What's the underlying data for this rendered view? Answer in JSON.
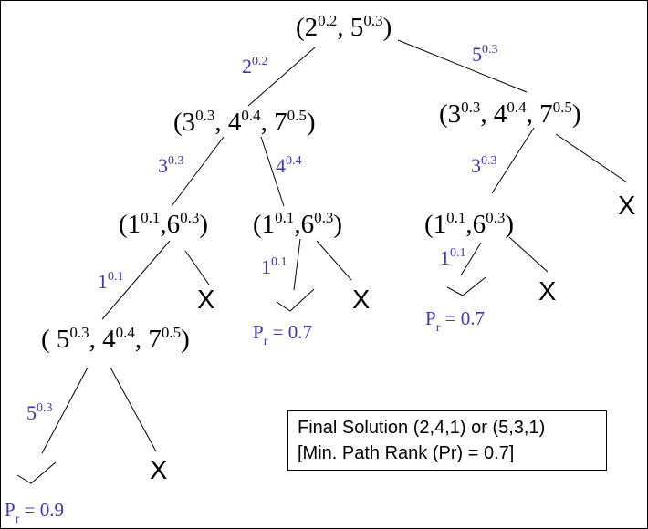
{
  "nodes": {
    "root": [
      {
        "base": "(2",
        "exp": "0.2"
      },
      {
        "base": ", 5",
        "exp": "0.3"
      },
      {
        "base": ")",
        "exp": ""
      }
    ],
    "left_l1": [
      {
        "base": "(3",
        "exp": "0.3"
      },
      {
        "base": ", 4",
        "exp": "0.4"
      },
      {
        "base": ", 7",
        "exp": "0.5"
      },
      {
        "base": ")",
        "exp": ""
      }
    ],
    "right_l1": [
      {
        "base": "(3",
        "exp": "0.3"
      },
      {
        "base": ", 4",
        "exp": "0.4"
      },
      {
        "base": ", 7",
        "exp": "0.5"
      },
      {
        "base": ")",
        "exp": ""
      }
    ],
    "ll_l2": [
      {
        "base": "(1",
        "exp": "0.1"
      },
      {
        "base": ",6",
        "exp": "0.3"
      },
      {
        "base": ")",
        "exp": ""
      }
    ],
    "lr_l2": [
      {
        "base": "(1",
        "exp": "0.1"
      },
      {
        "base": ",6",
        "exp": "0.3"
      },
      {
        "base": ")",
        "exp": ""
      }
    ],
    "rl_l2": [
      {
        "base": "(1",
        "exp": "0.1"
      },
      {
        "base": ",6",
        "exp": "0.3"
      },
      {
        "base": ")",
        "exp": ""
      }
    ],
    "lll_l3": [
      {
        "base": "( 5",
        "exp": "0.3"
      },
      {
        "base": ", 4",
        "exp": "0.4"
      },
      {
        "base": ", 7",
        "exp": "0.5"
      },
      {
        "base": ")",
        "exp": ""
      }
    ]
  },
  "edge_labels": {
    "root_left": {
      "base": "2",
      "exp": "0.2"
    },
    "root_right": {
      "base": "5",
      "exp": "0.3"
    },
    "l1_left": {
      "base": "3",
      "exp": "0.3"
    },
    "l1_mid": {
      "base": "4",
      "exp": "0.4"
    },
    "r1_left": {
      "base": "3",
      "exp": "0.3"
    },
    "l2_left": {
      "base": "1",
      "exp": "0.1"
    },
    "l2_mid": {
      "base": "1",
      "exp": "0.1"
    },
    "r2_left": {
      "base": "1",
      "exp": "0.1"
    },
    "l3_left": {
      "base": "5",
      "exp": "0.3"
    }
  },
  "x_mark": "X",
  "ranks": {
    "mid": {
      "base": "P",
      "sub": "r",
      "value": " = 0.7"
    },
    "right": {
      "base": "P",
      "sub": "r",
      "value": " = 0.7"
    },
    "bottom": {
      "base": "P",
      "sub": "r",
      "value": " = 0.9"
    }
  },
  "solution": {
    "line1": "Final Solution (2,4,1) or (5,3,1)",
    "line2": "[Min. Path Rank (Pr) = 0.7]"
  }
}
